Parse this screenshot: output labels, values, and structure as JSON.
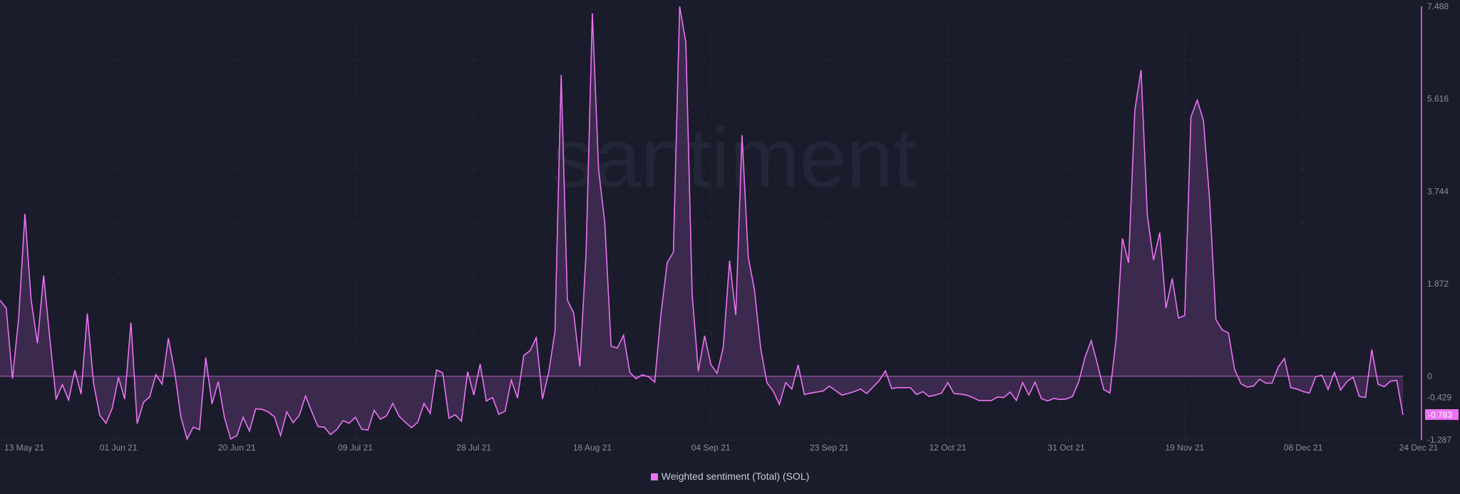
{
  "watermark": "santiment",
  "chart_data": {
    "type": "area",
    "series": [
      {
        "name": "Weighted sentiment (Total) (SOL)",
        "color": "#ec72f2",
        "fill": "#3b2a4d"
      }
    ],
    "legend": {
      "position": "bottom-center",
      "label": "Weighted sentiment (Total) (SOL)"
    },
    "y_axis": {
      "position": "right",
      "ylim": [
        -1.287,
        7.488
      ],
      "tick_labels": [
        "7.488",
        "5.616",
        "3.744",
        "1.872",
        "0",
        "-0.429",
        "-1.287"
      ],
      "ticks": [
        7.488,
        5.616,
        3.744,
        1.872,
        0,
        -0.429,
        -1.287
      ]
    },
    "last_value_badge": "-0.783",
    "x_tick_labels": [
      {
        "label": "13 May 21",
        "date": "2021-05-13"
      },
      {
        "label": "01 Jun 21",
        "date": "2021-06-01"
      },
      {
        "label": "20 Jun 21",
        "date": "2021-06-20"
      },
      {
        "label": "09 Jul 21",
        "date": "2021-07-09"
      },
      {
        "label": "28 Jul 21",
        "date": "2021-07-28"
      },
      {
        "label": "16 Aug 21",
        "date": "2021-08-16"
      },
      {
        "label": "04 Sep 21",
        "date": "2021-09-04"
      },
      {
        "label": "23 Sep 21",
        "date": "2021-09-23"
      },
      {
        "label": "12 Oct 21",
        "date": "2021-10-12"
      },
      {
        "label": "31 Oct 21",
        "date": "2021-10-31"
      },
      {
        "label": "19 Nov 21",
        "date": "2021-11-19"
      },
      {
        "label": "08 Dec 21",
        "date": "2021-12-08"
      },
      {
        "label": "24 Dec 21",
        "date": "2021-12-24"
      }
    ],
    "grid": true,
    "x": [
      "2021-05-13",
      "2021-05-14",
      "2021-05-15",
      "2021-05-16",
      "2021-05-17",
      "2021-05-18",
      "2021-05-19",
      "2021-05-20",
      "2021-05-21",
      "2021-05-22",
      "2021-05-23",
      "2021-05-24",
      "2021-05-25",
      "2021-05-26",
      "2021-05-27",
      "2021-05-28",
      "2021-05-29",
      "2021-05-30",
      "2021-05-31",
      "2021-06-01",
      "2021-06-02",
      "2021-06-03",
      "2021-06-04",
      "2021-06-05",
      "2021-06-06",
      "2021-06-07",
      "2021-06-08",
      "2021-06-09",
      "2021-06-10",
      "2021-06-11",
      "2021-06-12",
      "2021-06-13",
      "2021-06-14",
      "2021-06-15",
      "2021-06-16",
      "2021-06-17",
      "2021-06-18",
      "2021-06-19",
      "2021-06-20",
      "2021-06-21",
      "2021-06-22",
      "2021-06-23",
      "2021-06-24",
      "2021-06-25",
      "2021-06-26",
      "2021-06-27",
      "2021-06-28",
      "2021-06-29",
      "2021-06-30",
      "2021-07-01",
      "2021-07-02",
      "2021-07-03",
      "2021-07-04",
      "2021-07-05",
      "2021-07-06",
      "2021-07-07",
      "2021-07-08",
      "2021-07-09",
      "2021-07-10",
      "2021-07-11",
      "2021-07-12",
      "2021-07-13",
      "2021-07-14",
      "2021-07-15",
      "2021-07-16",
      "2021-07-17",
      "2021-07-18",
      "2021-07-19",
      "2021-07-20",
      "2021-07-21",
      "2021-07-22",
      "2021-07-23",
      "2021-07-24",
      "2021-07-25",
      "2021-07-26",
      "2021-07-27",
      "2021-07-28",
      "2021-07-29",
      "2021-07-30",
      "2021-07-31",
      "2021-08-01",
      "2021-08-02",
      "2021-08-03",
      "2021-08-04",
      "2021-08-05",
      "2021-08-06",
      "2021-08-07",
      "2021-08-08",
      "2021-08-09",
      "2021-08-10",
      "2021-08-11",
      "2021-08-12",
      "2021-08-13",
      "2021-08-14",
      "2021-08-15",
      "2021-08-16",
      "2021-08-17",
      "2021-08-18",
      "2021-08-19",
      "2021-08-20",
      "2021-08-21",
      "2021-08-22",
      "2021-08-23",
      "2021-08-24",
      "2021-08-25",
      "2021-08-26",
      "2021-08-27",
      "2021-08-28",
      "2021-08-29",
      "2021-08-30",
      "2021-08-31",
      "2021-09-01",
      "2021-09-02",
      "2021-09-03",
      "2021-09-04",
      "2021-09-05",
      "2021-09-06",
      "2021-09-07",
      "2021-09-08",
      "2021-09-09",
      "2021-09-10",
      "2021-09-11",
      "2021-09-12",
      "2021-09-13",
      "2021-09-14",
      "2021-09-15",
      "2021-09-16",
      "2021-09-17",
      "2021-09-18",
      "2021-09-19",
      "2021-09-20",
      "2021-09-21",
      "2021-09-22",
      "2021-09-23",
      "2021-09-24",
      "2021-09-25",
      "2021-09-26",
      "2021-09-27",
      "2021-09-28",
      "2021-09-29",
      "2021-09-30",
      "2021-10-01",
      "2021-10-02",
      "2021-10-03",
      "2021-10-04",
      "2021-10-05",
      "2021-10-06",
      "2021-10-07",
      "2021-10-08",
      "2021-10-09",
      "2021-10-10",
      "2021-10-11",
      "2021-10-12",
      "2021-10-13",
      "2021-10-14",
      "2021-10-15",
      "2021-10-16",
      "2021-10-17",
      "2021-10-18",
      "2021-10-19",
      "2021-10-20",
      "2021-10-21",
      "2021-10-22",
      "2021-10-23",
      "2021-10-24",
      "2021-10-25",
      "2021-10-26",
      "2021-10-27",
      "2021-10-28",
      "2021-10-29",
      "2021-10-30",
      "2021-10-31",
      "2021-11-01",
      "2021-11-02",
      "2021-11-03",
      "2021-11-04",
      "2021-11-05",
      "2021-11-06",
      "2021-11-07",
      "2021-11-08",
      "2021-11-09",
      "2021-11-10",
      "2021-11-11",
      "2021-11-12",
      "2021-11-13",
      "2021-11-14",
      "2021-11-15",
      "2021-11-16",
      "2021-11-17",
      "2021-11-18",
      "2021-11-19",
      "2021-11-20",
      "2021-11-21",
      "2021-11-22",
      "2021-11-23",
      "2021-11-24",
      "2021-11-25",
      "2021-11-26",
      "2021-11-27",
      "2021-11-28",
      "2021-11-29",
      "2021-11-30",
      "2021-12-01",
      "2021-12-02",
      "2021-12-03",
      "2021-12-04",
      "2021-12-05",
      "2021-12-06",
      "2021-12-07",
      "2021-12-08",
      "2021-12-09",
      "2021-12-10",
      "2021-12-11",
      "2021-12-12",
      "2021-12-13",
      "2021-12-14",
      "2021-12-15",
      "2021-12-16",
      "2021-12-17",
      "2021-12-18",
      "2021-12-19",
      "2021-12-20",
      "2021-12-21",
      "2021-12-22",
      "2021-12-23",
      "2021-12-24"
    ],
    "values": [
      1.54,
      1.38,
      -0.05,
      1.18,
      3.29,
      1.54,
      0.67,
      2.04,
      0.75,
      -0.46,
      -0.17,
      -0.48,
      0.12,
      -0.36,
      1.27,
      -0.14,
      -0.79,
      -0.95,
      -0.65,
      -0.02,
      -0.46,
      1.09,
      -0.96,
      -0.53,
      -0.42,
      0.03,
      -0.16,
      0.77,
      0.1,
      -0.82,
      -1.27,
      -1.03,
      -1.08,
      0.38,
      -0.56,
      -0.11,
      -0.84,
      -1.27,
      -1.2,
      -0.83,
      -1.11,
      -0.66,
      -0.67,
      -0.72,
      -0.82,
      -1.2,
      -0.72,
      -0.94,
      -0.79,
      -0.4,
      -0.72,
      -1.02,
      -1.03,
      -1.18,
      -1.08,
      -0.9,
      -0.95,
      -0.83,
      -1.07,
      -1.09,
      -0.69,
      -0.87,
      -0.8,
      -0.55,
      -0.81,
      -0.93,
      -1.04,
      -0.93,
      -0.55,
      -0.75,
      0.13,
      0.07,
      -0.85,
      -0.78,
      -0.91,
      0.09,
      -0.38,
      0.25,
      -0.5,
      -0.43,
      -0.77,
      -0.71,
      -0.08,
      -0.44,
      0.42,
      0.52,
      0.78,
      -0.46,
      0.08,
      0.91,
      6.1,
      1.54,
      1.28,
      0.2,
      2.52,
      7.35,
      4.18,
      3.1,
      0.61,
      0.57,
      0.83,
      0.08,
      -0.05,
      0.03,
      -0.01,
      -0.12,
      1.25,
      2.3,
      2.51,
      7.488,
      6.75,
      1.66,
      0.1,
      0.82,
      0.24,
      0.06,
      0.59,
      2.34,
      1.24,
      4.88,
      2.41,
      1.75,
      0.56,
      -0.13,
      -0.3,
      -0.57,
      -0.13,
      -0.26,
      0.23,
      -0.37,
      -0.34,
      -0.32,
      -0.3,
      -0.2,
      -0.29,
      -0.38,
      -0.35,
      -0.31,
      -0.26,
      -0.35,
      -0.22,
      -0.09,
      0.11,
      -0.25,
      -0.23,
      -0.23,
      -0.23,
      -0.37,
      -0.31,
      -0.41,
      -0.38,
      -0.34,
      -0.13,
      -0.35,
      -0.36,
      -0.38,
      -0.43,
      -0.49,
      -0.49,
      -0.49,
      -0.42,
      -0.43,
      -0.32,
      -0.49,
      -0.13,
      -0.38,
      -0.12,
      -0.45,
      -0.5,
      -0.45,
      -0.47,
      -0.46,
      -0.41,
      -0.11,
      0.38,
      0.72,
      0.25,
      -0.27,
      -0.34,
      0.76,
      2.79,
      2.3,
      5.39,
      6.2,
      3.26,
      2.35,
      2.91,
      1.38,
      1.98,
      1.18,
      1.23,
      5.25,
      5.59,
      5.18,
      3.55,
      1.15,
      0.94,
      0.88,
      0.14,
      -0.15,
      -0.22,
      -0.2,
      -0.06,
      -0.14,
      -0.14,
      0.19,
      0.36,
      -0.23,
      -0.26,
      -0.31,
      -0.34,
      -0.01,
      0.02,
      -0.27,
      0.08,
      -0.28,
      -0.11,
      -0.02,
      -0.41,
      -0.43,
      0.54,
      -0.16,
      -0.21,
      -0.1,
      -0.08,
      -0.783
    ]
  }
}
